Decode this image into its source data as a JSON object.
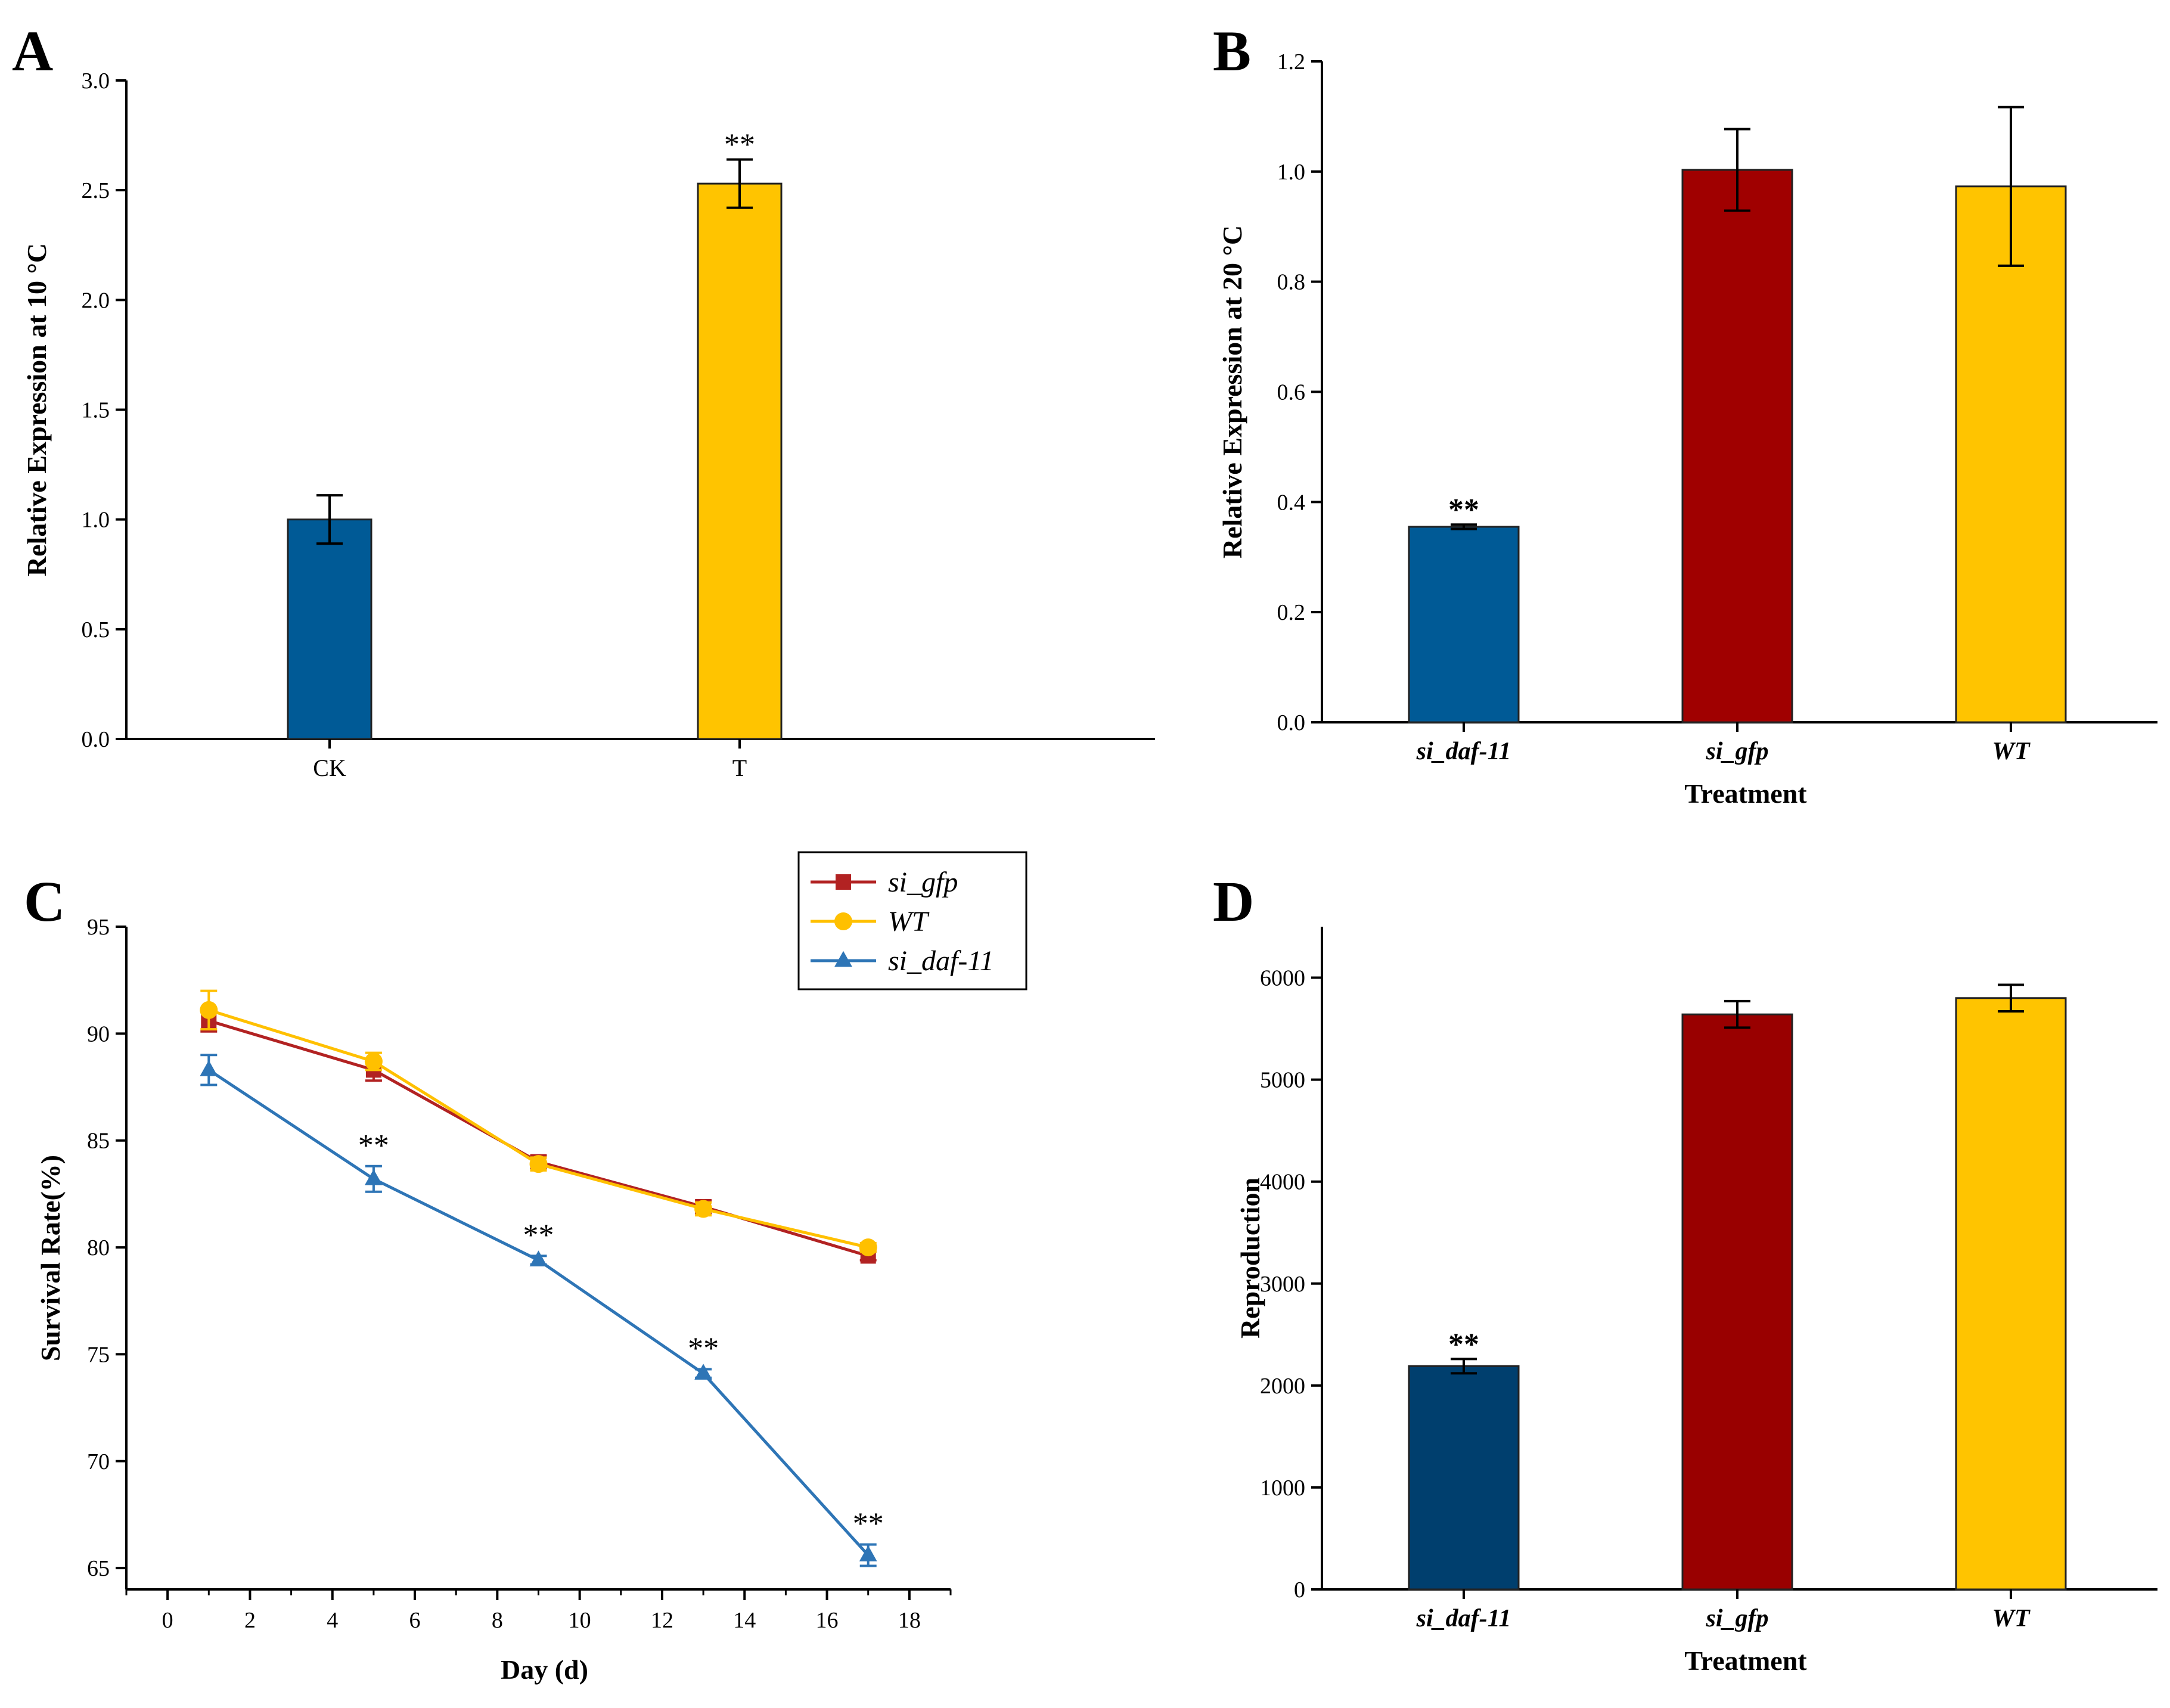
{
  "chart_data": [
    {
      "panel": "A",
      "type": "bar",
      "categories": [
        "CK",
        "T"
      ],
      "values": [
        1.0,
        2.53
      ],
      "errors": [
        0.11,
        0.11
      ],
      "colors": [
        "#005a96",
        "#ffc400"
      ],
      "significance": [
        "",
        "**"
      ],
      "xlabel": "",
      "ylabel": "Relative Expression at 10 °C",
      "ylim": [
        0,
        3.0
      ],
      "yticks": [
        "0.0",
        "0.5",
        "1.0",
        "1.5",
        "2.0",
        "2.5",
        "3.0"
      ]
    },
    {
      "panel": "B",
      "type": "bar",
      "categories": [
        "si_daf-11",
        "si_gfp",
        "WT"
      ],
      "values": [
        0.355,
        1.003,
        0.973
      ],
      "errors": [
        0.004,
        0.074,
        0.144
      ],
      "colors": [
        "#005a96",
        "#a00000",
        "#ffc400"
      ],
      "significance": [
        "**",
        "",
        ""
      ],
      "xlabel": "Treatment",
      "ylabel": "Relative Expression at 20 °C",
      "ylim": [
        0,
        1.2
      ],
      "yticks": [
        "0.0",
        "0.2",
        "0.4",
        "0.6",
        "0.8",
        "1.0",
        "1.2"
      ]
    },
    {
      "panel": "C",
      "type": "line",
      "x": [
        1,
        5,
        9,
        13,
        17
      ],
      "series": [
        {
          "name": "si_gfp",
          "values": [
            90.6,
            88.3,
            84.0,
            81.9,
            79.6
          ],
          "errors": [
            0.5,
            0.5,
            0.3,
            0.3,
            0.2
          ],
          "color": "#b22222",
          "marker": "square"
        },
        {
          "name": "WT",
          "values": [
            91.1,
            88.7,
            83.9,
            81.8,
            80.0
          ],
          "errors": [
            0.9,
            0.4,
            0.3,
            0.3,
            0.2
          ],
          "color": "#ffc000",
          "marker": "circle"
        },
        {
          "name": "si_daf-11",
          "values": [
            88.3,
            83.2,
            79.4,
            74.1,
            65.6
          ],
          "errors": [
            0.7,
            0.6,
            0.2,
            0.2,
            0.5
          ],
          "color": "#2e75b6",
          "marker": "triangle"
        }
      ],
      "significance": [
        "",
        "**",
        "**",
        "**",
        "**"
      ],
      "xlabel": "Day (d)",
      "ylabel": "Survival Rate(%)",
      "xlim": [
        -1,
        19
      ],
      "ylim": [
        64,
        95
      ],
      "xticks": [
        "0",
        "2",
        "4",
        "6",
        "8",
        "10",
        "12",
        "14",
        "16",
        "18"
      ],
      "yticks": [
        "65",
        "70",
        "75",
        "80",
        "85",
        "90",
        "95"
      ],
      "legend_position": "top-right"
    },
    {
      "panel": "D",
      "type": "bar",
      "categories": [
        "si_daf-11",
        "si_gfp",
        "WT"
      ],
      "values": [
        2190,
        5640,
        5800
      ],
      "errors": [
        70,
        130,
        130
      ],
      "colors": [
        "#003f6e",
        "#990000",
        "#ffc400"
      ],
      "significance": [
        "**",
        "",
        ""
      ],
      "xlabel": "Treatment",
      "ylabel": "Reproduction",
      "ylim": [
        0,
        6500
      ],
      "yticks": [
        "0",
        "1000",
        "2000",
        "3000",
        "4000",
        "5000",
        "6000"
      ]
    }
  ]
}
